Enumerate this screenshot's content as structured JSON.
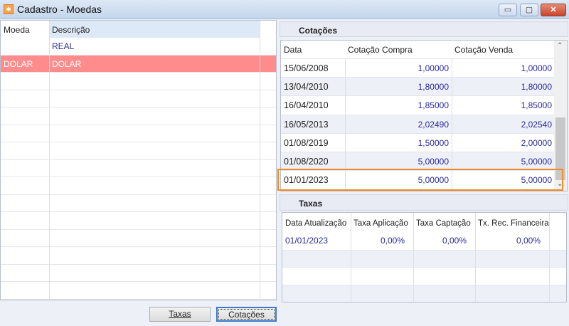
{
  "window": {
    "title": "Cadastro - Moedas",
    "minimize": "▭",
    "maximize": "▢",
    "close": "✕"
  },
  "moedas": {
    "columns": [
      "Moeda",
      "Descrição"
    ],
    "rows": [
      {
        "moeda": "",
        "descricao": "REAL"
      },
      {
        "moeda": "DOLAR",
        "descricao": "DOLAR",
        "selected": true
      }
    ]
  },
  "cotacoes": {
    "title": "Cotações",
    "columns": [
      "Data",
      "Cotação Compra",
      "Cotação Venda"
    ],
    "rows": [
      [
        "15/06/2008",
        "1,00000",
        "1,00000"
      ],
      [
        "13/04/2010",
        "1,80000",
        "1,80000"
      ],
      [
        "16/04/2010",
        "1,85000",
        "1,85000"
      ],
      [
        "16/05/2013",
        "2,02490",
        "2,02540"
      ],
      [
        "01/08/2019",
        "1,50000",
        "2,00000"
      ],
      [
        "01/08/2020",
        "5,00000",
        "5,00000"
      ],
      [
        "01/01/2023",
        "5,00000",
        "5,00000"
      ]
    ],
    "highlight_color": "#f08a24"
  },
  "taxas": {
    "title": "Taxas",
    "columns": [
      "Data Atualização",
      "Taxa Aplicação",
      "Taxa Captação",
      "Tx. Rec. Financeira"
    ],
    "rows": [
      [
        "01/01/2023",
        "0,00%",
        "0,00%",
        "0,00%"
      ]
    ]
  },
  "buttons": {
    "taxas": "Taxas",
    "cotacoes": "Cotações"
  },
  "colors": {
    "selected_row": "#ff8c8c",
    "value_text": "#2a2a9a"
  }
}
